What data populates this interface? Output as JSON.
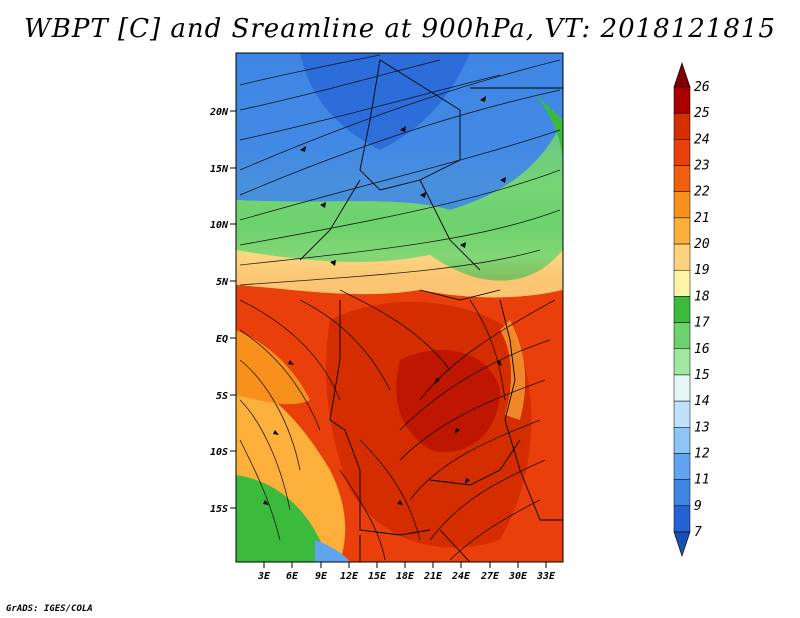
{
  "title": "WBPT [C] and Sreamline at 900hPa, VT: 2018121815",
  "footer": "GrADS: IGES/COLA",
  "map": {
    "lat_labels": [
      "20N",
      "15N",
      "10N",
      "5N",
      "EQ",
      "5S",
      "10S",
      "15S"
    ],
    "lon_labels": [
      "3E",
      "6E",
      "9E",
      "12E",
      "15E",
      "18E",
      "21E",
      "24E",
      "27E",
      "30E",
      "33E"
    ]
  },
  "colorbar": {
    "labels": [
      "26",
      "25",
      "24",
      "23",
      "22",
      "21",
      "20",
      "19",
      "18",
      "17",
      "16",
      "15",
      "14",
      "13",
      "12",
      "11",
      "9",
      "7"
    ],
    "colors": [
      "#7e0000",
      "#a80000",
      "#d42d00",
      "#e83f0b",
      "#f05f0f",
      "#f7911c",
      "#fcaf3a",
      "#fcd27e",
      "#fff4a6",
      "#3cba3c",
      "#6dd16d",
      "#a0e8a0",
      "#e5f8f4",
      "#bfe1fc",
      "#8dc4f6",
      "#60a4ee",
      "#3f86e3",
      "#2563d4",
      "#1a4eb5"
    ]
  }
}
